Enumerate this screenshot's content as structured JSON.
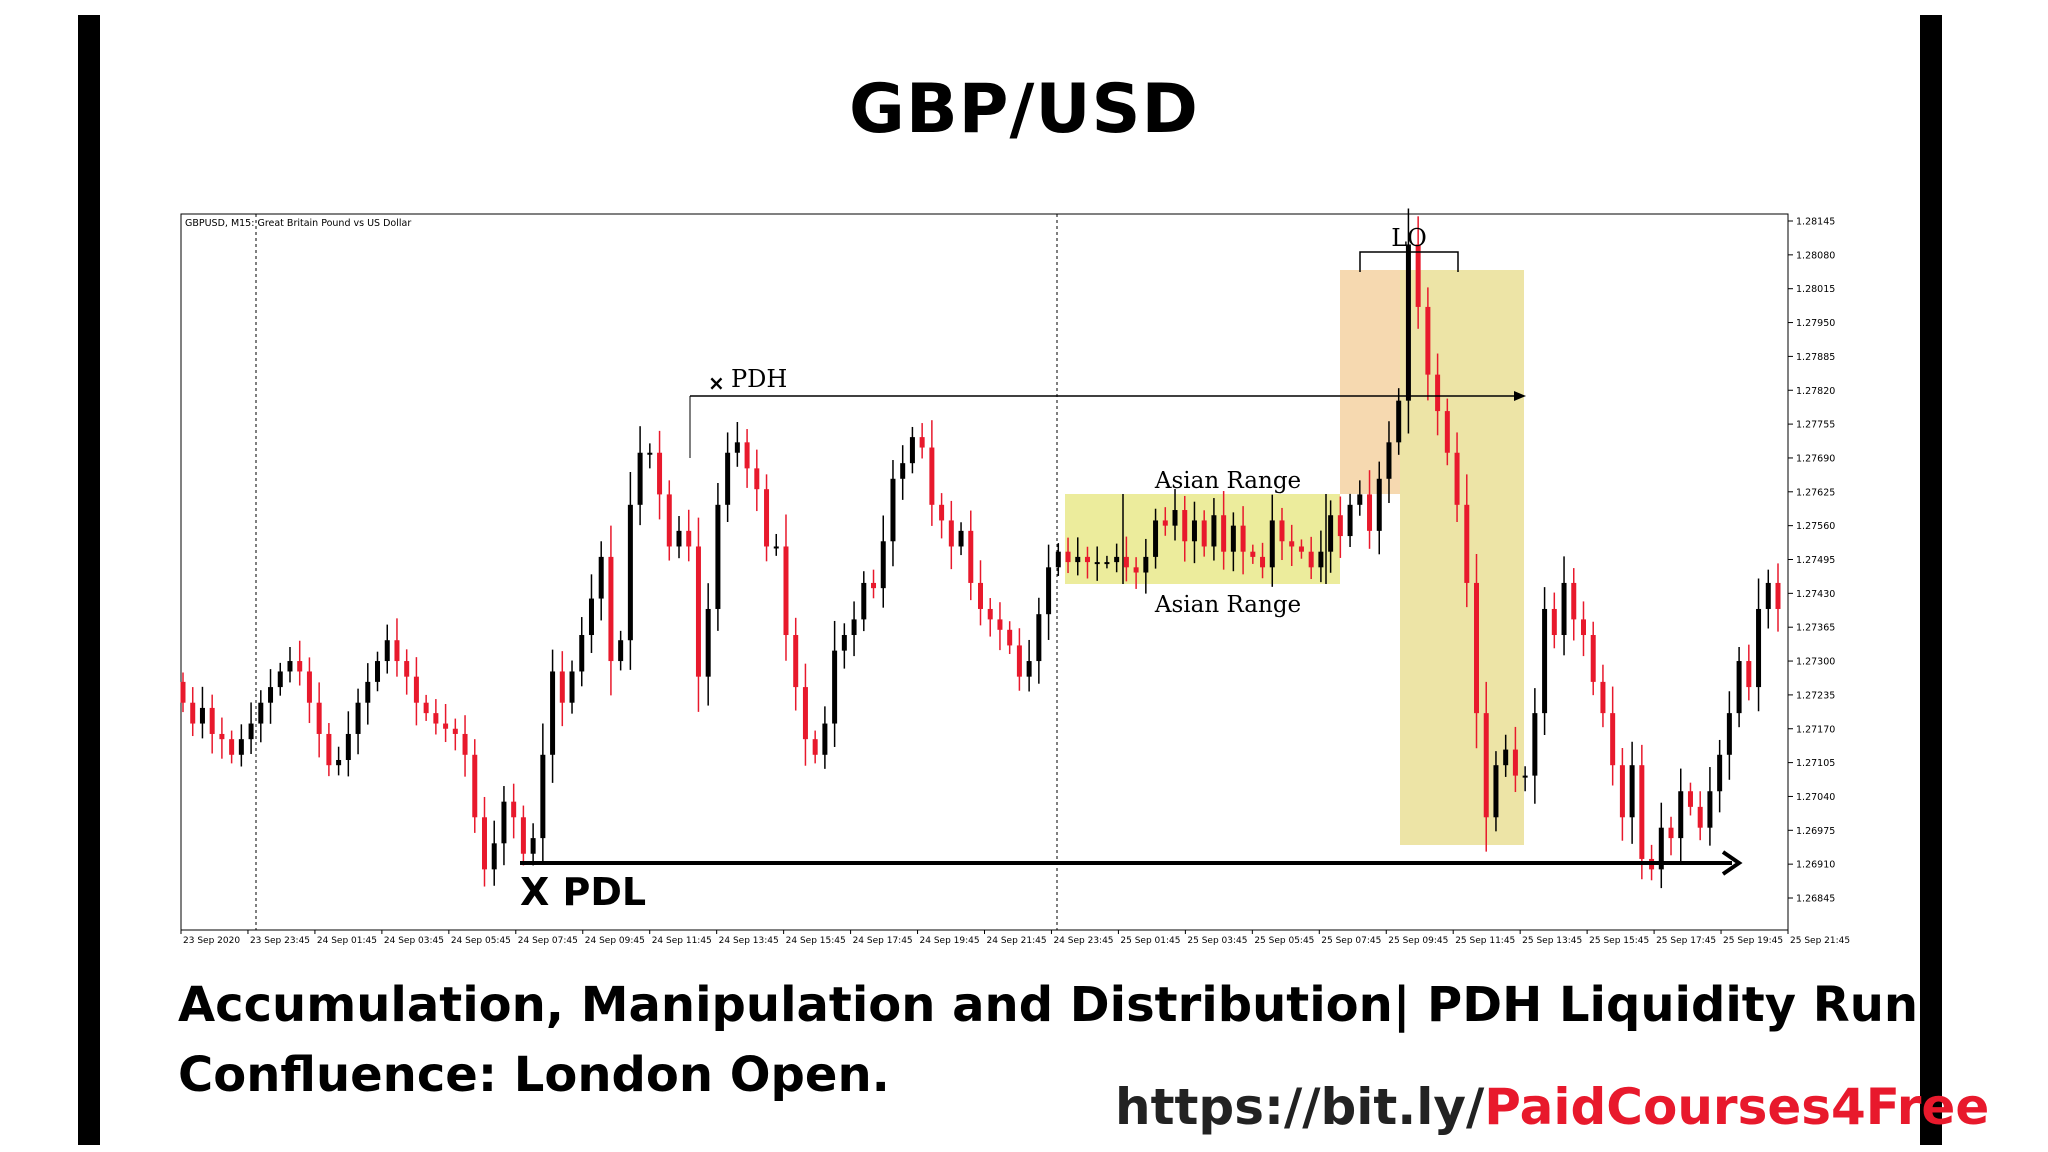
{
  "title": "GBP/USD",
  "chart_header": "GBPUSD, M15:  Great Britain Pound vs US Dollar",
  "caption_lines": [
    "Accumulation, Manipulation and Distribution| PDH Liquidity Run",
    "Confluence: London Open."
  ],
  "link": {
    "prefix": "https://bit.ly/",
    "highlight": "PaidCourses4Free"
  },
  "annotations": {
    "pdh": "PDH",
    "pdh_marker": "×",
    "pdl": "X PDL",
    "lo": "LO",
    "asian_top": "Asian Range",
    "asian_bottom": "Asian Range"
  },
  "colors": {
    "bull": "#000000",
    "bear": "#e8192c",
    "asian_zone": "#ecec9c",
    "lo_zone_early": "#f6d9b0",
    "lo_zone": "#ede4a6"
  },
  "chart_data": {
    "type": "candlestick",
    "symbol": "GBPUSD",
    "timeframe": "M15",
    "y_ticks": [
      "1.28145",
      "1.28080",
      "1.28015",
      "1.27950",
      "1.27885",
      "1.27820",
      "1.27755",
      "1.27690",
      "1.27625",
      "1.27560",
      "1.27495",
      "1.27430",
      "1.27365",
      "1.27300",
      "1.27235",
      "1.27170",
      "1.27105",
      "1.27040",
      "1.26975",
      "1.26910",
      "1.26845"
    ],
    "ylim": [
      1.2682,
      1.28165
    ],
    "x_ticks": [
      "23 Sep 2020",
      "23 Sep 23:45",
      "24 Sep 01:45",
      "24 Sep 03:45",
      "24 Sep 05:45",
      "24 Sep 07:45",
      "24 Sep 09:45",
      "24 Sep 11:45",
      "24 Sep 13:45",
      "24 Sep 15:45",
      "24 Sep 17:45",
      "24 Sep 19:45",
      "24 Sep 21:45",
      "24 Sep 23:45",
      "25 Sep 01:45",
      "25 Sep 03:45",
      "25 Sep 05:45",
      "25 Sep 07:45",
      "25 Sep 09:45",
      "25 Sep 11:45",
      "25 Sep 13:45",
      "25 Sep 15:45",
      "25 Sep 17:45",
      "25 Sep 19:45",
      "25 Sep 21:45"
    ],
    "levels": {
      "pdh": 1.278,
      "pdl": 1.269
    },
    "closes": [
      1.2722,
      1.2718,
      1.2721,
      1.2716,
      1.2715,
      1.2712,
      1.2715,
      1.2718,
      1.2722,
      1.2725,
      1.2728,
      1.273,
      1.2728,
      1.2722,
      1.2716,
      1.271,
      1.2711,
      1.2716,
      1.2722,
      1.2726,
      1.273,
      1.2734,
      1.273,
      1.2727,
      1.2722,
      1.272,
      1.2718,
      1.2717,
      1.2716,
      1.2712,
      1.27,
      1.269,
      1.2695,
      1.2703,
      1.27,
      1.2693,
      1.2696,
      1.2712,
      1.2728,
      1.2722,
      1.2728,
      1.2735,
      1.2742,
      1.275,
      1.273,
      1.2734,
      1.276,
      1.277,
      1.277,
      1.2762,
      1.2752,
      1.2755,
      1.2752,
      1.2727,
      1.274,
      1.276,
      1.277,
      1.2772,
      1.2767,
      1.2763,
      1.2752,
      1.2752,
      1.2735,
      1.2725,
      1.2715,
      1.2712,
      1.2718,
      1.2732,
      1.2735,
      1.2738,
      1.2745,
      1.2744,
      1.2753,
      1.2765,
      1.2768,
      1.2773,
      1.2771,
      1.276,
      1.2757,
      1.2752,
      1.2755,
      1.2745,
      1.274,
      1.2738,
      1.2736,
      1.2733,
      1.2727,
      1.273,
      1.2739,
      1.2748,
      1.2751,
      1.2749,
      1.275,
      1.2749,
      1.2749,
      1.2749,
      1.275,
      1.2748,
      1.2747,
      1.275,
      1.2757,
      1.2756,
      1.2759,
      1.2753,
      1.2757,
      1.2752,
      1.2758,
      1.2751,
      1.2756,
      1.2751,
      1.275,
      1.2748,
      1.2757,
      1.2753,
      1.2752,
      1.2751,
      1.2748,
      1.2751,
      1.2758,
      1.2754,
      1.276,
      1.2762,
      1.2755,
      1.2765,
      1.2772,
      1.278,
      1.281,
      1.2798,
      1.2785,
      1.2778,
      1.277,
      1.276,
      1.2745,
      1.272,
      1.27,
      1.271,
      1.2713,
      1.2708,
      1.2708,
      1.272,
      1.274,
      1.2735,
      1.2745,
      1.2738,
      1.2735,
      1.2726,
      1.272,
      1.271,
      1.27,
      1.271,
      1.2692,
      1.269,
      1.2698,
      1.2696,
      1.2705,
      1.2702,
      1.2698,
      1.2705,
      1.2712,
      1.272,
      1.273,
      1.2725,
      1.274,
      1.2745,
      1.274
    ]
  }
}
